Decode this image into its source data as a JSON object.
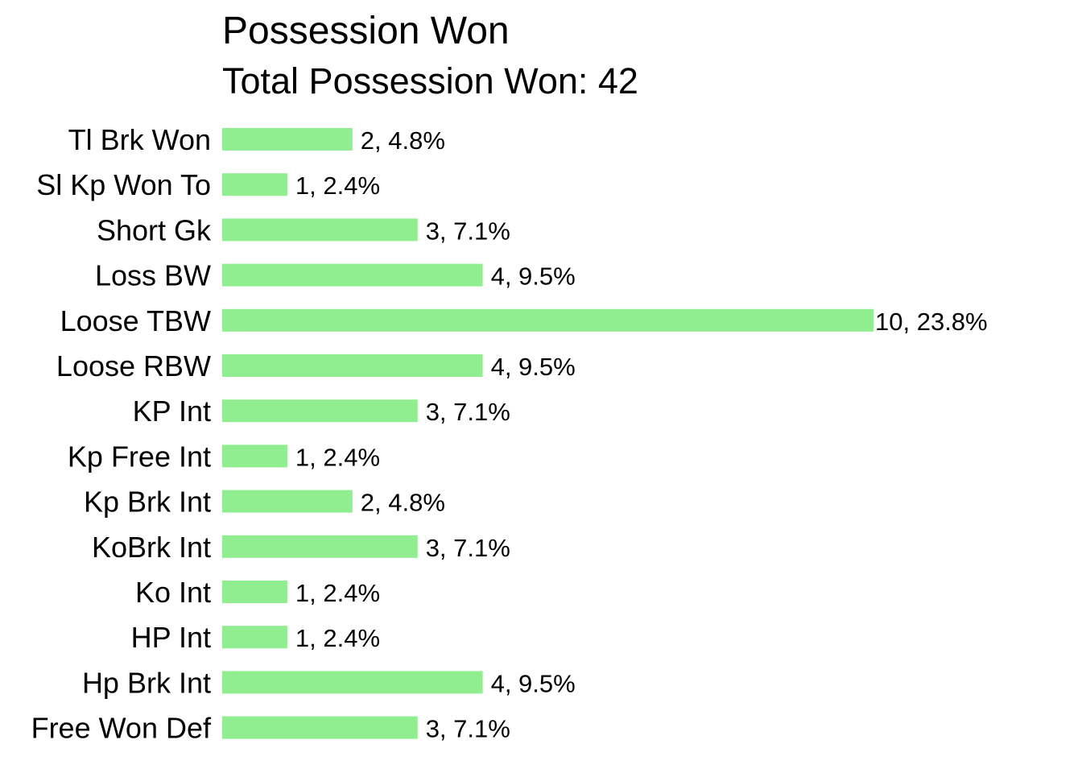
{
  "chart_data": {
    "type": "bar",
    "orientation": "horizontal",
    "title": "Possession Won",
    "subtitle": "Total Possession Won: 42",
    "xlabel": "",
    "ylabel": "",
    "grid": false,
    "legend": "none",
    "categories": [
      "Tl Brk Won",
      "Sl Kp Won To",
      "Short Gk",
      "Loss BW",
      "Loose TBW",
      "Loose RBW",
      "KP Int",
      "Kp Free Int",
      "Kp Brk Int",
      "KoBrk Int",
      "Ko Int",
      "HP Int",
      "Hp Brk Int",
      "Free Won Def"
    ],
    "values": [
      2,
      1,
      3,
      4,
      10,
      4,
      3,
      1,
      2,
      3,
      1,
      1,
      4,
      3
    ],
    "data_labels": [
      "2, 4.8%",
      "1, 2.4%",
      "3, 7.1%",
      "4, 9.5%",
      "10, 23.8%",
      "4, 9.5%",
      "3, 7.1%",
      "1, 2.4%",
      "2, 4.8%",
      "3, 7.1%",
      "1, 2.4%",
      "1, 2.4%",
      "4, 9.5%",
      "3, 7.1%"
    ],
    "xlim": [
      0,
      10
    ],
    "colors": {
      "bar": "#90ee90",
      "text": "#000000",
      "background": "#ffffff"
    }
  }
}
